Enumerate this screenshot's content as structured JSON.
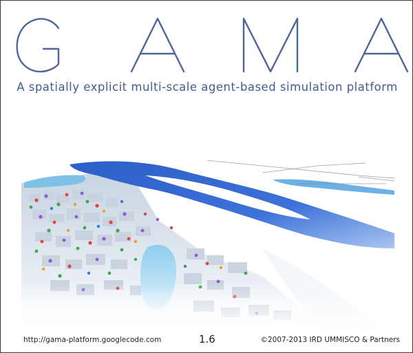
{
  "splash": {
    "title": "GAMA",
    "subtitle": "A spatially explicit multi-scale agent-based simulation platform",
    "footer": {
      "url": "http://gama-platform.googlecode.com",
      "version": "1.6",
      "copyright": "©2007-2013 IRD UMMISCO & Partners"
    },
    "colors": {
      "title": "#4a6596",
      "subtitle": "#3f5e90",
      "river": "#3a6fd8",
      "lake": "#9fd6f0",
      "buildings": "#d9e2ec",
      "border": "#3a3a3a"
    }
  }
}
